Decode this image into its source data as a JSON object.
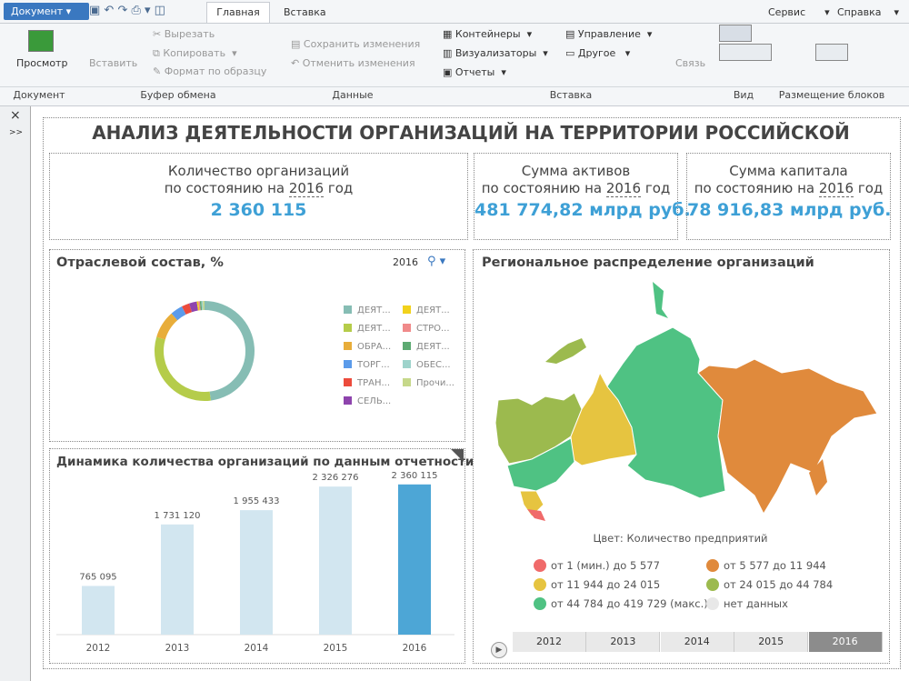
{
  "toolbar": {
    "document_menu": "Документ",
    "tabs": [
      "Главная",
      "Вставка"
    ],
    "menus": [
      "Сервис",
      "Справка"
    ],
    "groups": [
      {
        "label": "Документ",
        "items": [
          "Просмотр"
        ]
      },
      {
        "label": "Буфер обмена",
        "items": [
          "Вставить",
          "Вырезать",
          "Копировать",
          "Формат по образцу"
        ]
      },
      {
        "label": "Данные",
        "items": [
          "Сохранить изменения",
          "Отменить изменения"
        ]
      },
      {
        "label": "Вставка",
        "items": [
          "Контейнеры",
          "Визуализаторы",
          "Отчеты",
          "Управление",
          "Другое",
          "Связь"
        ]
      },
      {
        "label": "Вид"
      },
      {
        "label": "Размещение блоков"
      }
    ]
  },
  "dashboard": {
    "title": "АНАЛИЗ ДЕЯТЕЛЬНОСТИ ОРГАНИЗАЦИЙ НА ТЕРРИТОРИИ РОССИЙСКОЙ",
    "kpis": [
      {
        "label": "Количество организаций",
        "date_prefix": "по состоянию на",
        "year": "2016",
        "date_suffix": "год",
        "value": "2 360 115"
      },
      {
        "label": "Сумма активов",
        "date_prefix": "по состоянию на",
        "year": "2016",
        "date_suffix": "год",
        "value": "481 774,82 млрд руб."
      },
      {
        "label": "Сумма капитала",
        "date_prefix": "по состоянию на",
        "year": "2016",
        "date_suffix": "год",
        "value": "78 916,83 млрд руб."
      }
    ],
    "industry_chart": {
      "type": "donut",
      "title": "Отраслевой состав, %",
      "selected_year": "2016",
      "categories": [
        "ДЕЯТ...",
        "ДЕЯТ...",
        "ОБРА...",
        "ТОРГ...",
        "ТРАН...",
        "СЕЛЬ...",
        "ДЕЯТ...",
        "СТРО...",
        "ДЕЯТ...",
        "ОБЕС...",
        "Прочи..."
      ],
      "colors": [
        "#86bdb4",
        "#b5cc4a",
        "#e8ad3a",
        "#5b9bea",
        "#ec4b3c",
        "#8e44ad",
        "#f2d21c",
        "#f08a8a",
        "#5daa72",
        "#9ed3cb",
        "#c6d88a"
      ],
      "values": [
        48,
        31.5,
        9,
        4,
        2.5,
        2.5,
        0.5,
        0.5,
        0.5,
        0.5,
        0.5
      ]
    },
    "dynamics_chart": {
      "type": "bar",
      "title": "Динамика количества организаций по данным отчетности",
      "categories": [
        "2012",
        "2013",
        "2014",
        "2015",
        "2016"
      ],
      "values": [
        765095,
        1731120,
        1955433,
        2326276,
        2360115
      ],
      "value_labels": [
        "765 095",
        "1 731 120",
        "1 955 433",
        "2 326 276",
        "2 360 115"
      ],
      "colors": [
        "#d2e6f0",
        "#d2e6f0",
        "#d2e6f0",
        "#d2e6f0",
        "#4da6d6"
      ],
      "ylim": [
        0,
        2700000
      ]
    },
    "regional_map": {
      "title": "Региональное распределение организаций",
      "color_caption": "Цвет: Количество предприятий",
      "legend": [
        {
          "label": "от 1 (мин.) до 5 577",
          "color": "#f06a6a"
        },
        {
          "label": "от 5 577 до 11 944",
          "color": "#e08a3c"
        },
        {
          "label": "от 11 944 до 24 015",
          "color": "#e6c440"
        },
        {
          "label": "от 24 015 до 44 784",
          "color": "#9cba4e"
        },
        {
          "label": "от 44 784 до 419 729 (макс.)",
          "color": "#4fc283"
        },
        {
          "label": "нет данных",
          "color": "#e8e8e8"
        }
      ],
      "timeline": [
        "2012",
        "2013",
        "2014",
        "2015",
        "2016"
      ],
      "selected_year": "2016"
    }
  }
}
